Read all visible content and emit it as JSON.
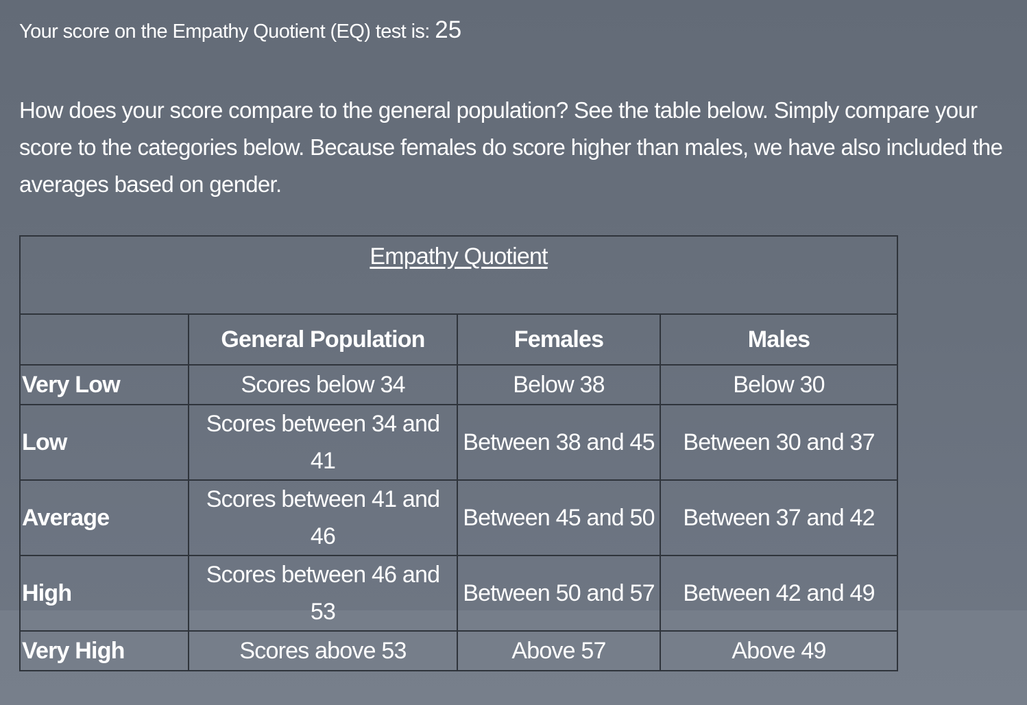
{
  "score": {
    "label": "Your score on the Empathy Quotient (EQ) test is:",
    "value": "25"
  },
  "intro": "How does your score compare to the general population? See the table below. Simply compare your score to the categories below. Because females do score higher than males, we have also included the averages based on gender.",
  "table": {
    "caption": "Empathy Quotient",
    "columns": [
      "",
      "General Population",
      "Females",
      "Males"
    ],
    "rows": [
      {
        "label": "Very Low",
        "general": "Scores below 34",
        "females": "Below 38",
        "males": "Below 30"
      },
      {
        "label": "Low",
        "general": "Scores between 34 and 41",
        "females": "Between 38 and 45",
        "males": "Between 30 and 37"
      },
      {
        "label": "Average",
        "general": "Scores between 41 and 46",
        "females": "Between 45 and 50",
        "males": "Between 37 and 42"
      },
      {
        "label": "High",
        "general": "Scores between 46 and 53",
        "females": "Between  50 and 57",
        "males": "Between  42 and 49"
      },
      {
        "label": "Very High",
        "general": "Scores above 53",
        "females": "Above 57",
        "males": "Above 49"
      }
    ]
  },
  "colors": {
    "background": "#68707c",
    "text": "#ffffff",
    "table_border": "#2f343b"
  }
}
